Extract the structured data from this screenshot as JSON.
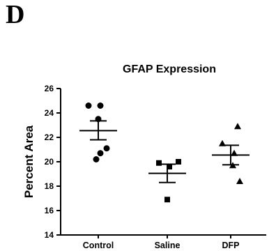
{
  "panel_label": "D",
  "chart_data": {
    "type": "scatter",
    "title": "GFAP Expression",
    "xlabel": "",
    "ylabel": "Percent Area",
    "ylim": [
      14,
      26
    ],
    "yticks": [
      14,
      16,
      18,
      20,
      22,
      24,
      26
    ],
    "categories": [
      "Control",
      "Saline",
      "DFP"
    ],
    "grid": false,
    "legend": "none",
    "groups": [
      {
        "category": "Control",
        "marker": "circle",
        "points": [
          24.6,
          24.6,
          23.5,
          21.1,
          20.7,
          20.2
        ],
        "mean": 22.55,
        "sem_upper": 23.35,
        "sem_lower": 21.8
      },
      {
        "category": "Saline",
        "marker": "square",
        "points": [
          19.9,
          20.0,
          19.6,
          16.9
        ],
        "mean": 19.05,
        "sem_upper": 19.8,
        "sem_lower": 18.3
      },
      {
        "category": "DFP",
        "marker": "triangle",
        "points": [
          22.9,
          21.5,
          20.7,
          19.7,
          18.4
        ],
        "mean": 20.55,
        "sem_upper": 21.35,
        "sem_lower": 19.75
      }
    ],
    "color": "#000000"
  }
}
